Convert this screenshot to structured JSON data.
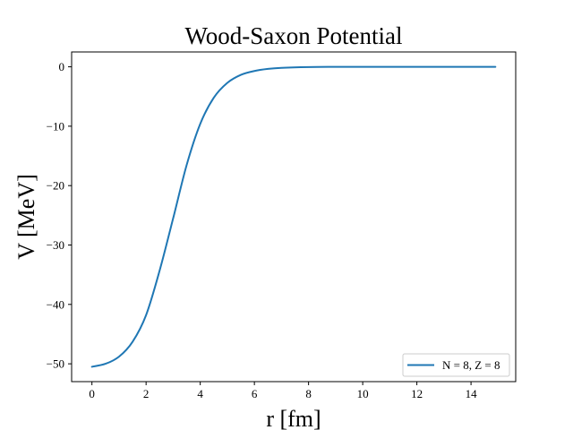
{
  "chart_data": {
    "type": "line",
    "title": "Wood-Saxon Potential",
    "xlabel": "r [fm]",
    "ylabel": "V [MeV]",
    "xlim": [
      -0.75,
      15.65
    ],
    "ylim": [
      -53,
      2.5
    ],
    "xticks": [
      0,
      2,
      4,
      6,
      8,
      10,
      12,
      14
    ],
    "xtick_labels": [
      "0",
      "2",
      "4",
      "6",
      "8",
      "10",
      "12",
      "14"
    ],
    "yticks": [
      0,
      -10,
      -20,
      -30,
      -40,
      -50
    ],
    "ytick_labels": [
      "0",
      "−10",
      "−20",
      "−30",
      "−40",
      "−50"
    ],
    "grid": false,
    "legend_position": "lower right",
    "series": [
      {
        "name": "N = 8, Z = 8",
        "color": "#1f77b4",
        "x": [
          0,
          0.5,
          1.0,
          1.5,
          2.0,
          2.5,
          3.0,
          3.5,
          4.0,
          4.5,
          5.0,
          5.5,
          6.0,
          6.5,
          7.0,
          8.0,
          9.0,
          10.0,
          11.0,
          12.0,
          13.0,
          14.0,
          14.9
        ],
        "y": [
          -50.5,
          -50.0,
          -48.8,
          -46.3,
          -41.8,
          -34.3,
          -25.5,
          -16.5,
          -9.6,
          -5.2,
          -2.7,
          -1.35,
          -0.7,
          -0.35,
          -0.17,
          -0.04,
          -0.01,
          0,
          0,
          0,
          0,
          0,
          0
        ]
      }
    ]
  }
}
